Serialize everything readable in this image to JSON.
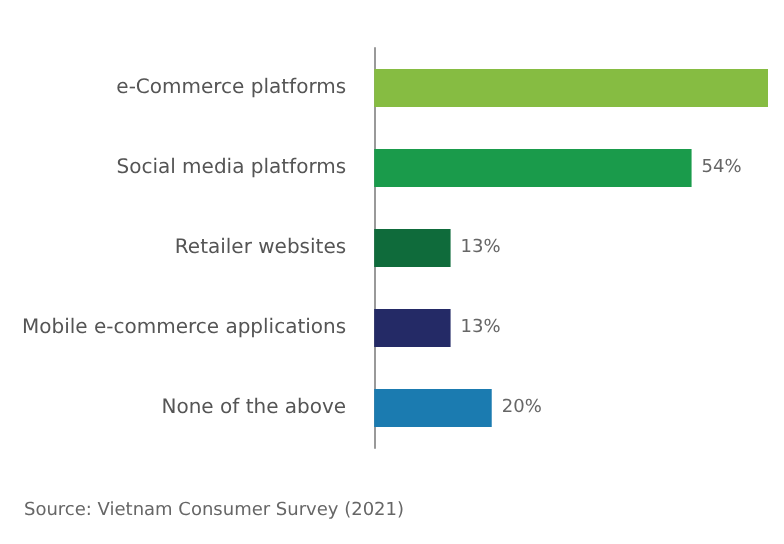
{
  "chart_data": {
    "type": "bar",
    "orientation": "horizontal",
    "categories": [
      "e-Commerce platforms",
      "Social media platforms",
      "Retailer websites",
      "Mobile e-commerce applications",
      "None of the above"
    ],
    "values": [
      67,
      54,
      13,
      13,
      20
    ],
    "value_labels": [
      null,
      "54%",
      "13%",
      "13%",
      "20%"
    ],
    "colors": [
      "#86bc42",
      "#1a9b4b",
      "#0f6b3b",
      "#242a66",
      "#1b7bb0"
    ],
    "annotations": [
      "Source: Vietnam Consumer Survey (2021)"
    ]
  }
}
